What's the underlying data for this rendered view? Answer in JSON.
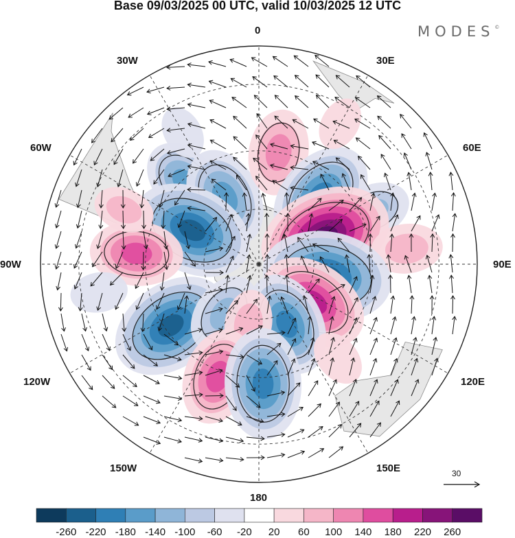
{
  "title": "Base 09/03/2025 00 UTC, valid 10/03/2025 12 UTC",
  "brand": {
    "name": "MODES",
    "mark": "©"
  },
  "map": {
    "projection": "south-polar-stereographic",
    "longitude_labels": {
      "top": "0",
      "top_left": "30W",
      "top_right": "30E",
      "upper_left": "60W",
      "upper_right": "60E",
      "left": "90W",
      "right": "90E",
      "lower_left": "120W",
      "lower_right": "120E",
      "bottom_left": "150W",
      "bottom_right": "150E",
      "bottom": "180"
    },
    "wind_vector_reference": {
      "value": "30"
    },
    "anomalies": [
      {
        "lon": -42,
        "lat": -51,
        "value": -140
      },
      {
        "lon": -27,
        "lat": -63,
        "value": -170
      },
      {
        "lon": -63,
        "lat": -63,
        "value": -230
      },
      {
        "lon": 10,
        "lat": -50,
        "value": 130
      },
      {
        "lon": 42,
        "lat": -57,
        "value": -200
      },
      {
        "lon": 65,
        "lat": -46,
        "value": -100
      },
      {
        "lon": 67,
        "lat": -64,
        "value": 260
      },
      {
        "lon": 84,
        "lat": -39,
        "value": 90
      },
      {
        "lon": -85,
        "lat": -47,
        "value": 150
      },
      {
        "lon": -68,
        "lat": -40,
        "value": 60
      },
      {
        "lon": 100,
        "lat": -65,
        "value": -250
      },
      {
        "lon": 125,
        "lat": -66,
        "value": 200
      },
      {
        "lon": 155,
        "lat": -66,
        "value": -180
      },
      {
        "lon": -125,
        "lat": -52,
        "value": -230
      },
      {
        "lon": -145,
        "lat": -68,
        "value": -120
      },
      {
        "lon": -170,
        "lat": -68,
        "value": 80
      },
      {
        "lon": -160,
        "lat": -48,
        "value": 160
      },
      {
        "lon": 178,
        "lat": -48,
        "value": -200
      },
      {
        "lon": 140,
        "lat": -47,
        "value": 50
      },
      {
        "lon": -100,
        "lat": -35,
        "value": -50
      },
      {
        "lon": 30,
        "lat": -35,
        "value": 40
      },
      {
        "lon": -30,
        "lat": -38,
        "value": -40
      }
    ]
  },
  "colorbar": {
    "ticks": [
      "-260",
      "-220",
      "-180",
      "-140",
      "-100",
      "-60",
      "-20",
      "20",
      "60",
      "100",
      "140",
      "180",
      "220",
      "260"
    ],
    "colors": [
      "#0d3a5c",
      "#1b5f8c",
      "#2f7fb5",
      "#5a9cc9",
      "#8fb5d8",
      "#bcc9e3",
      "#dfe1ef",
      "#ffffff",
      "#f9d9df",
      "#f5b6c8",
      "#ee86b1",
      "#df4d9f",
      "#b81e8c",
      "#871479",
      "#5a0d66"
    ]
  }
}
